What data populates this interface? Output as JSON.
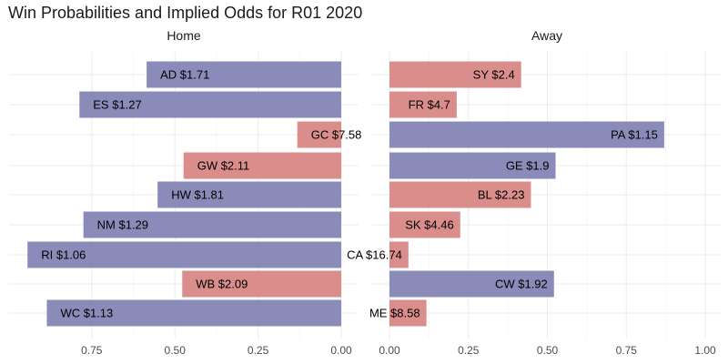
{
  "title": "Win Probabilities and Implied Odds for R01 2020",
  "colors": {
    "favourite": "#8b8bb9",
    "underdog": "#d98e8c"
  },
  "chart_data": {
    "type": "bar",
    "orientation": "horizontal",
    "title": "Win Probabilities and Implied Odds for R01 2020",
    "grid": true,
    "panels": [
      {
        "name": "Home",
        "x_reversed": true,
        "xlim": [
          0,
          0.93
        ],
        "ticks": [
          0,
          0.25,
          0.5,
          0.75
        ],
        "tick_labels": [
          "0.00",
          "0.25",
          "0.50",
          "0.75"
        ],
        "bars": [
          {
            "team": "AD",
            "label": "AD $1.71",
            "value": 0.585,
            "favourite": true
          },
          {
            "team": "ES",
            "label": "ES $1.27",
            "value": 0.787,
            "favourite": true
          },
          {
            "team": "GC",
            "label": "GC $7.58",
            "value": 0.132,
            "favourite": false
          },
          {
            "team": "GW",
            "label": "GW $2.11",
            "value": 0.474,
            "favourite": false
          },
          {
            "team": "HW",
            "label": "HW $1.81",
            "value": 0.552,
            "favourite": true
          },
          {
            "team": "NM",
            "label": "NM $1.29",
            "value": 0.775,
            "favourite": true
          },
          {
            "team": "RI",
            "label": "RI $1.06",
            "value": 0.943,
            "favourite": true
          },
          {
            "team": "WB",
            "label": "WB $2.09",
            "value": 0.478,
            "favourite": false
          },
          {
            "team": "WC",
            "label": "WC $1.13",
            "value": 0.885,
            "favourite": true
          }
        ]
      },
      {
        "name": "Away",
        "x_reversed": false,
        "xlim": [
          0,
          1.02
        ],
        "ticks": [
          0,
          0.25,
          0.5,
          0.75,
          1.0
        ],
        "tick_labels": [
          "0.00",
          "0.25",
          "0.50",
          "0.75",
          "1.00"
        ],
        "bars": [
          {
            "team": "SY",
            "label": "SY $2.4",
            "value": 0.417,
            "favourite": false
          },
          {
            "team": "FR",
            "label": "FR $4.7",
            "value": 0.213,
            "favourite": false
          },
          {
            "team": "PA",
            "label": "PA $1.15",
            "value": 0.87,
            "favourite": true
          },
          {
            "team": "GE",
            "label": "GE $1.9",
            "value": 0.526,
            "favourite": true
          },
          {
            "team": "BL",
            "label": "BL $2.23",
            "value": 0.448,
            "favourite": false
          },
          {
            "team": "SK",
            "label": "SK $4.46",
            "value": 0.224,
            "favourite": false
          },
          {
            "team": "CA",
            "label": "CA $16.74",
            "value": 0.06,
            "favourite": false
          },
          {
            "team": "CW",
            "label": "CW $1.92",
            "value": 0.521,
            "favourite": true
          },
          {
            "team": "ME",
            "label": "ME $8.58",
            "value": 0.117,
            "favourite": false
          }
        ]
      }
    ]
  }
}
